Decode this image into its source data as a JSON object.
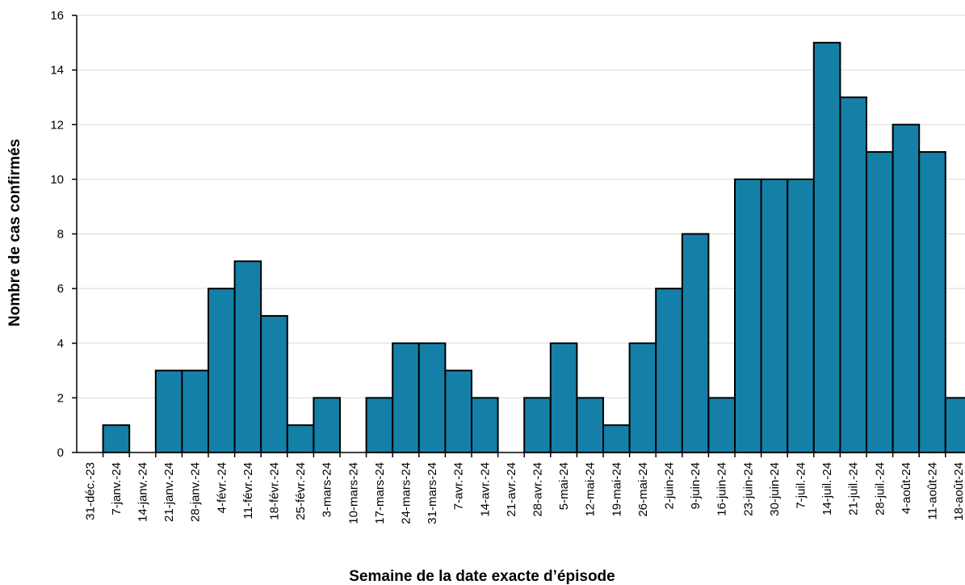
{
  "chart_data": {
    "type": "bar",
    "xlabel": "Semaine de la date exacte d’épisode",
    "ylabel": "Nombre de cas confirmés",
    "ylim": [
      0,
      16
    ],
    "yticks": [
      0,
      2,
      4,
      6,
      8,
      10,
      12,
      14,
      16
    ],
    "grid": true,
    "bar_color": "#1580a7",
    "categories": [
      "31-déc.-23",
      "7-janv.-24",
      "14-janv.-24",
      "21-janv.-24",
      "28-janv.-24",
      "4-févr.-24",
      "11-févr.-24",
      "18-févr.-24",
      "25-févr.-24",
      "3-mars-24",
      "10-mars-24",
      "17-mars-24",
      "24-mars-24",
      "31-mars-24",
      "7-avr.-24",
      "14-avr.-24",
      "21-avr.-24",
      "28-avr.-24",
      "5-mai-24",
      "12-mai-24",
      "19-mai-24",
      "26-mai-24",
      "2-juin-24",
      "9-juin-24",
      "16-juin-24",
      "23-juin-24",
      "30-juin-24",
      "7-juil.-24",
      "14-juil.-24",
      "21-juil.-24",
      "28-juil.-24",
      "4-août-24",
      "11-août-24",
      "18-août-24"
    ],
    "values": [
      0,
      1,
      0,
      3,
      3,
      6,
      7,
      5,
      1,
      2,
      0,
      2,
      4,
      4,
      3,
      2,
      0,
      2,
      4,
      2,
      1,
      4,
      6,
      8,
      2,
      10,
      10,
      10,
      15,
      13,
      11,
      12,
      11,
      2
    ]
  }
}
